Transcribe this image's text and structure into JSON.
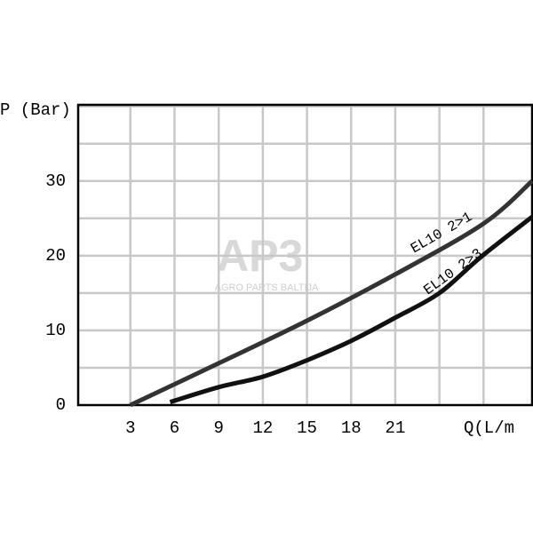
{
  "chart_data": {
    "type": "line",
    "y_label": "P (Bar)",
    "x_label": "Q(L/m",
    "watermark": {
      "logo": "AP3",
      "text": "AGRO PARTS BALTIJA"
    },
    "xlim": [
      -0.55,
      30.3
    ],
    "ylim": [
      0,
      40.2
    ],
    "xticks": [
      3,
      6,
      9,
      12,
      15,
      18,
      21
    ],
    "yticks": [
      0,
      10,
      20,
      30
    ],
    "x_grid": [
      3,
      6,
      9,
      12,
      15,
      18,
      21,
      24,
      27
    ],
    "y_grid": [
      5,
      10,
      15,
      20,
      25,
      30,
      35,
      40
    ],
    "grid": true,
    "series": [
      {
        "name": "EL10 2>1",
        "color": "#333333",
        "x": [
          3,
          9,
          15,
          21,
          27,
          30.3
        ],
        "values": [
          0,
          5.6,
          11.3,
          17.5,
          24.3,
          30
        ]
      },
      {
        "name": "EL10 2>3",
        "color": "#111111",
        "x": [
          5.7,
          9,
          12,
          15,
          18,
          21,
          24,
          26.8,
          30.3
        ],
        "values": [
          0.4,
          2.4,
          3.8,
          6,
          8.6,
          11.7,
          15,
          19.8,
          25.2
        ]
      }
    ]
  }
}
